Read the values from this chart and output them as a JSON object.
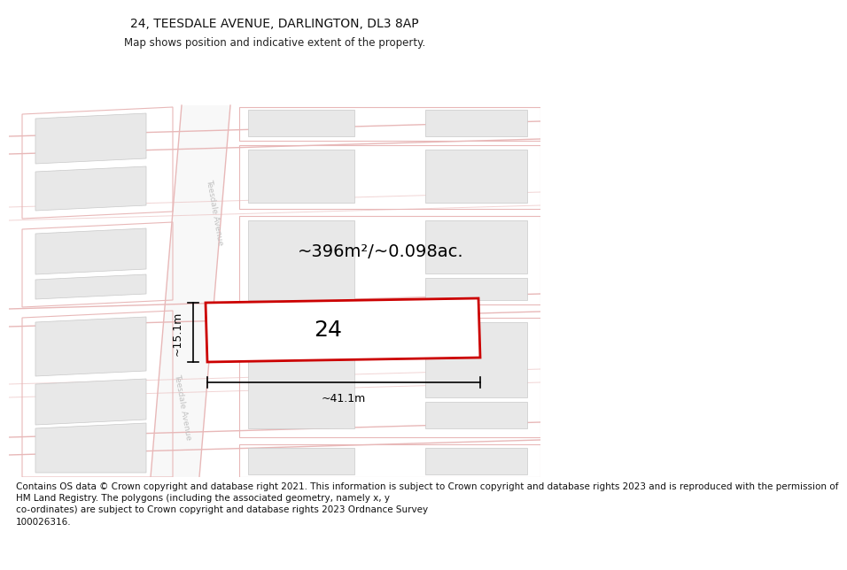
{
  "title": "24, TEESDALE AVENUE, DARLINGTON, DL3 8AP",
  "subtitle": "Map shows position and indicative extent of the property.",
  "footer": "Contains OS data © Crown copyright and database right 2021. This information is subject to Crown copyright and database rights 2023 and is reproduced with the permission of\nHM Land Registry. The polygons (including the associated geometry, namely x, y\nco-ordinates) are subject to Crown copyright and database rights 2023 Ordnance Survey\n100026316.",
  "area_text": "~396m²/~0.098ac.",
  "width_text": "~41.1m",
  "height_text": "~15.1m",
  "plot_number": "24",
  "bg_color": "#ffffff",
  "building_fill": "#e8e8e8",
  "building_edge": "#c8c8c8",
  "plot_fill": "#ffffff",
  "plot_edge": "#cc0000",
  "road_fill": "#f8f8f8",
  "road_edge": "#e8b8b8",
  "street_color": "#c0c0c0",
  "dim_color": "#000000",
  "title_fontsize": 10,
  "subtitle_fontsize": 8.5,
  "footer_fontsize": 7.5,
  "area_fontsize": 14,
  "number_fontsize": 18,
  "dim_fontsize": 9
}
